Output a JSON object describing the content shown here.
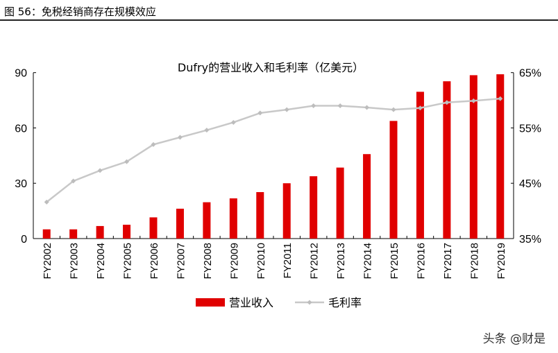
{
  "figure_title": "图 56：免税经销商存在规模效应",
  "watermark": "头条 @财是",
  "chart_data": {
    "type": "bar+line",
    "title": "Dufry的营业收入和毛利率（亿美元）",
    "categories": [
      "FY2002",
      "FY2003",
      "FY2004",
      "FY2005",
      "FY2006",
      "FY2007",
      "FY2008",
      "FY2009",
      "FY2010",
      "FY2011",
      "FY2012",
      "FY2013",
      "FY2014",
      "FY2015",
      "FY2016",
      "FY2017",
      "FY2018",
      "FY2019"
    ],
    "series": [
      {
        "name": "营业收入",
        "type": "bar",
        "axis": "left",
        "color": "#e00000",
        "values": [
          5.0,
          5.0,
          6.8,
          7.5,
          11.5,
          16.2,
          19.7,
          21.8,
          25.2,
          30.0,
          33.8,
          38.5,
          45.8,
          63.8,
          79.6,
          85.3,
          88.6,
          89.1
        ]
      },
      {
        "name": "毛利率",
        "type": "line",
        "axis": "right",
        "color": "#c8c8c8",
        "values": [
          41.6,
          45.4,
          47.3,
          48.9,
          52.0,
          53.3,
          54.6,
          56.0,
          57.7,
          58.3,
          59.0,
          59.0,
          58.7,
          58.3,
          58.6,
          59.6,
          59.9,
          60.3
        ]
      }
    ],
    "y_left": {
      "range": [
        0,
        90
      ],
      "ticks": [
        "0",
        "30",
        "60",
        "90"
      ]
    },
    "y_right": {
      "range": [
        35,
        65
      ],
      "ticks": [
        "35%",
        "45%",
        "55%",
        "65%"
      ]
    },
    "legend": "bottom",
    "grid": false
  }
}
